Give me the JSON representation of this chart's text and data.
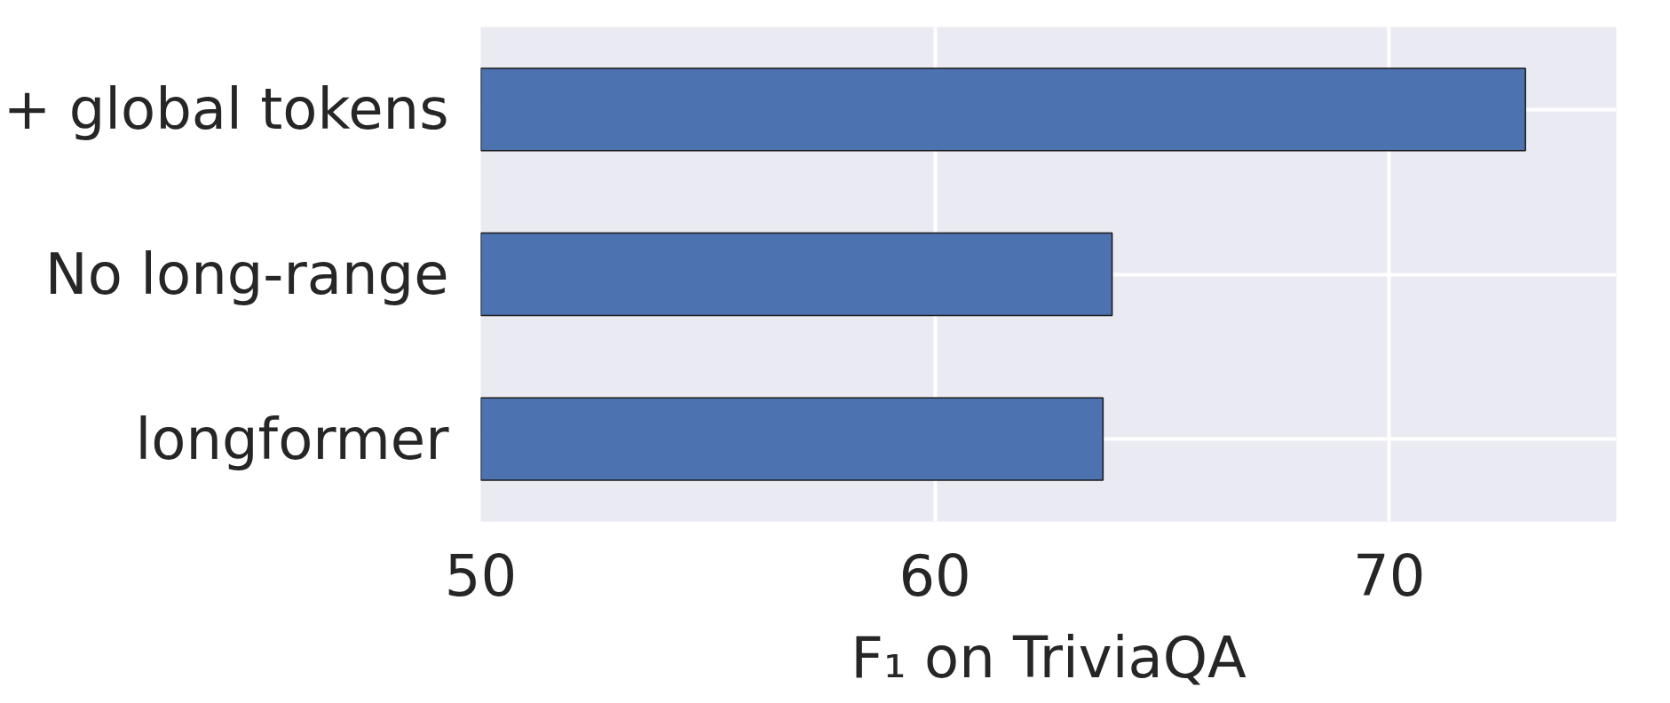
{
  "chart_data": {
    "type": "bar",
    "orientation": "horizontal",
    "xlabel": "F₁ on TriviaQA",
    "categories": [
      "+ global tokens",
      "No long-range",
      "longformer"
    ],
    "values": [
      73.0,
      63.9,
      63.7
    ],
    "color": "#4c72b0",
    "xlim": [
      50,
      75
    ],
    "xticks": [
      50,
      60,
      70
    ],
    "grid": true
  }
}
